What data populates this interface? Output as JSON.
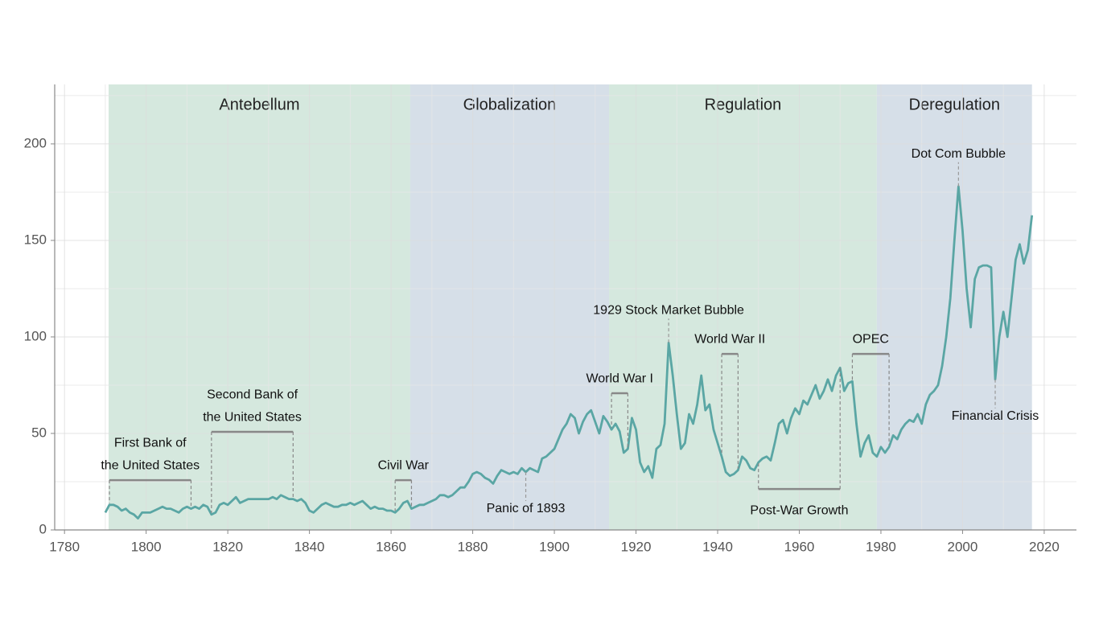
{
  "chart_data": {
    "type": "line",
    "xlim": [
      1777.6,
      2027.9
    ],
    "ylim": [
      0,
      230.8
    ],
    "xticks": [
      1780,
      1800,
      1820,
      1840,
      1860,
      1880,
      1900,
      1920,
      1940,
      1960,
      1980,
      2000,
      2020
    ],
    "yticks": [
      0,
      50,
      100,
      150,
      200
    ],
    "xminor": [
      1790,
      1810,
      1830,
      1850,
      1870,
      1890,
      1910,
      1930,
      1950,
      1970,
      1990,
      2010
    ],
    "yminor": [
      25,
      75,
      125,
      175,
      225
    ],
    "grid": true,
    "periods": [
      {
        "name": "Antebellum",
        "start": 1790.8,
        "end": 1864.7,
        "color": "#d5e8de"
      },
      {
        "name": "Globalization",
        "start": 1864.7,
        "end": 1913.4,
        "color": "#d6dfe8"
      },
      {
        "name": "Regulation",
        "start": 1913.4,
        "end": 1979.0,
        "color": "#d5e8de"
      },
      {
        "name": "Deregulation",
        "start": 1979.0,
        "end": 2017.0,
        "color": "#d6dfe8"
      }
    ],
    "brackets": [
      {
        "label": [
          "First Bank of",
          "the United States"
        ],
        "start": 1791,
        "end": 1811,
        "level": 25.8,
        "label_position": "above"
      },
      {
        "label": [
          "Second Bank of",
          "the United States"
        ],
        "start": 1816,
        "end": 1836,
        "level": 50.8,
        "label_position": "above"
      },
      {
        "label": [
          "Civil War"
        ],
        "start": 1861,
        "end": 1865,
        "level": 25.8,
        "label_position": "above"
      },
      {
        "label": [
          "World War I"
        ],
        "start": 1914,
        "end": 1918,
        "level": 70.8,
        "label_position": "above"
      },
      {
        "label": [
          "World War II"
        ],
        "start": 1941,
        "end": 1945,
        "level": 91.2,
        "label_position": "above"
      },
      {
        "label": [
          "OPEC"
        ],
        "start": 1973,
        "end": 1982,
        "level": 91.2,
        "label_position": "above"
      },
      {
        "label": [
          "Post-War Growth"
        ],
        "start": 1950,
        "end": 1970,
        "level": 21.2,
        "label_position": "below"
      }
    ],
    "points": [
      {
        "label": "Panic of 1893",
        "x": 1893,
        "label_position": "below"
      },
      {
        "label": "1929 Stock Market Bubble",
        "x": 1928,
        "label_position": "above"
      },
      {
        "label": "Dot Com Bubble",
        "x": 1999,
        "label_position": "above"
      },
      {
        "label": "Financial Crisis",
        "x": 2008,
        "label_position": "below"
      }
    ],
    "series": [
      {
        "color": "#5aa6a4",
        "x": [
          1790,
          1791,
          1792,
          1793,
          1794,
          1795,
          1796,
          1797,
          1798,
          1799,
          1800,
          1801,
          1802,
          1803,
          1804,
          1805,
          1806,
          1807,
          1808,
          1809,
          1810,
          1811,
          1812,
          1813,
          1814,
          1815,
          1816,
          1817,
          1818,
          1819,
          1820,
          1821,
          1822,
          1823,
          1824,
          1825,
          1826,
          1827,
          1828,
          1829,
          1830,
          1831,
          1832,
          1833,
          1834,
          1835,
          1836,
          1837,
          1838,
          1839,
          1840,
          1841,
          1842,
          1843,
          1844,
          1845,
          1846,
          1847,
          1848,
          1849,
          1850,
          1851,
          1852,
          1853,
          1854,
          1855,
          1856,
          1857,
          1858,
          1859,
          1860,
          1861,
          1862,
          1863,
          1864,
          1865,
          1866,
          1867,
          1868,
          1869,
          1870,
          1871,
          1872,
          1873,
          1874,
          1875,
          1876,
          1877,
          1878,
          1879,
          1880,
          1881,
          1882,
          1883,
          1884,
          1885,
          1886,
          1887,
          1888,
          1889,
          1890,
          1891,
          1892,
          1893,
          1894,
          1895,
          1896,
          1897,
          1898,
          1899,
          1900,
          1901,
          1902,
          1903,
          1904,
          1905,
          1906,
          1907,
          1908,
          1909,
          1910,
          1911,
          1912,
          1913,
          1914,
          1915,
          1916,
          1917,
          1918,
          1919,
          1920,
          1921,
          1922,
          1923,
          1924,
          1925,
          1926,
          1927,
          1928,
          1929,
          1930,
          1931,
          1932,
          1933,
          1934,
          1935,
          1936,
          1937,
          1938,
          1939,
          1940,
          1941,
          1942,
          1943,
          1944,
          1945,
          1946,
          1947,
          1948,
          1949,
          1950,
          1951,
          1952,
          1953,
          1954,
          1955,
          1956,
          1957,
          1958,
          1959,
          1960,
          1961,
          1962,
          1963,
          1964,
          1965,
          1966,
          1967,
          1968,
          1969,
          1970,
          1971,
          1972,
          1973,
          1974,
          1975,
          1976,
          1977,
          1978,
          1979,
          1980,
          1981,
          1982,
          1983,
          1984,
          1985,
          1986,
          1987,
          1988,
          1989,
          1990,
          1991,
          1992,
          1993,
          1994,
          1995,
          1996,
          1997,
          1998,
          1999,
          2000,
          2001,
          2002,
          2003,
          2004,
          2005,
          2006,
          2007,
          2008,
          2009,
          2010,
          2011,
          2012,
          2013,
          2014,
          2015,
          2016,
          2017
        ],
        "values": [
          9,
          13,
          13,
          12,
          10,
          11,
          9,
          8,
          6,
          9,
          9,
          9,
          10,
          11,
          12,
          11,
          11,
          10,
          9,
          11,
          12,
          11,
          12,
          11,
          13,
          12,
          8,
          9,
          13,
          14,
          13,
          15,
          17,
          14,
          15,
          16,
          16,
          16,
          16,
          16,
          16,
          17,
          16,
          18,
          17,
          16,
          16,
          15,
          16,
          14,
          10,
          9,
          11,
          13,
          14,
          13,
          12,
          12,
          13,
          13,
          14,
          13,
          14,
          15,
          13,
          11,
          12,
          11,
          11,
          10,
          10,
          9,
          11,
          14,
          15,
          11,
          12,
          13,
          13,
          14,
          15,
          16,
          18,
          18,
          17,
          18,
          20,
          22,
          22,
          25,
          29,
          30,
          29,
          27,
          26,
          24,
          28,
          31,
          30,
          29,
          30,
          29,
          32,
          30,
          32,
          31,
          30,
          37,
          38,
          40,
          42,
          47,
          52,
          55,
          60,
          58,
          50,
          56,
          60,
          62,
          56,
          50,
          59,
          56,
          52,
          55,
          51,
          40,
          42,
          58,
          52,
          35,
          30,
          33,
          27,
          42,
          44,
          55,
          97,
          80,
          60,
          42,
          45,
          60,
          55,
          65,
          80,
          62,
          65,
          52,
          45,
          38,
          30,
          28,
          29,
          31,
          38,
          36,
          32,
          31,
          35,
          37,
          38,
          36,
          45,
          55,
          57,
          50,
          58,
          63,
          60,
          67,
          65,
          70,
          75,
          68,
          72,
          78,
          72,
          80,
          84,
          72,
          76,
          77,
          55,
          38,
          45,
          49,
          40,
          38,
          43,
          40,
          43,
          49,
          47,
          52,
          55,
          57,
          56,
          60,
          55,
          65,
          70,
          72,
          75,
          85,
          100,
          120,
          150,
          178,
          155,
          125,
          105,
          130,
          136,
          137,
          137,
          136,
          78,
          100,
          113,
          100,
          120,
          140,
          148,
          138,
          145,
          163
        ]
      }
    ]
  }
}
